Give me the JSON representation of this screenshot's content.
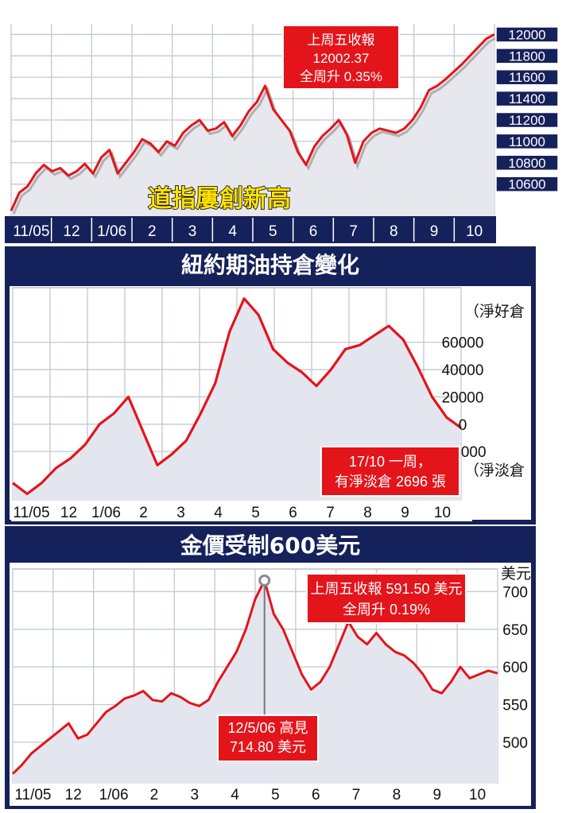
{
  "chart_data": [
    {
      "type": "line",
      "title": "",
      "annotation": "道指屢創新高",
      "callout": [
        "上周五收報",
        "12002.37",
        "全周升 0.35%"
      ],
      "x_labels": [
        "11/05",
        "12",
        "1/06",
        "2",
        "3",
        "4",
        "5",
        "6",
        "7",
        "8",
        "9",
        "10"
      ],
      "y_ticks": [
        12000,
        11800,
        11600,
        11400,
        11200,
        11000,
        10800,
        10600
      ],
      "ylim": [
        10300,
        12100
      ],
      "series": [
        {
          "values": [
            10350,
            10520,
            10580,
            10700,
            10780,
            10720,
            10750,
            10680,
            10720,
            10790,
            10700,
            10850,
            10920,
            10700,
            10800,
            10900,
            11020,
            10980,
            10900,
            11000,
            10960,
            11080,
            11150,
            11200,
            11100,
            11120,
            11180,
            11050,
            11150,
            11280,
            11370,
            11520,
            11300,
            11200,
            11100,
            10900,
            10780,
            10950,
            11050,
            11120,
            11200,
            11060,
            10800,
            11000,
            11080,
            11120,
            11100,
            11080,
            11120,
            11200,
            11320,
            11480,
            11520,
            11580,
            11650,
            11720,
            11800,
            11880,
            11960,
            12002
          ]
        }
      ],
      "grid": true
    },
    {
      "type": "line",
      "title": "紐約期油持倉變化",
      "x_labels": [
        "11/05",
        "12",
        "1/06",
        "2",
        "3",
        "4",
        "5",
        "6",
        "7",
        "8",
        "9",
        "10"
      ],
      "y_ticks": [
        60000,
        40000,
        20000,
        0,
        -20000
      ],
      "y_top_label": "（淨好倉",
      "y_bottom_label": "（淨淡倉",
      "ylim": [
        -56000,
        100000
      ],
      "callout": [
        "17/10 一周，",
        "有淨淡倉 2696 張"
      ],
      "series": [
        {
          "values": [
            -43000,
            -51000,
            -43000,
            -32000,
            -25000,
            -15000,
            0,
            8000,
            20000,
            -5000,
            -30000,
            -22000,
            -12000,
            8000,
            30000,
            68000,
            92000,
            80000,
            55000,
            45000,
            38000,
            28000,
            40000,
            55000,
            58000,
            65000,
            72000,
            62000,
            42000,
            20000,
            5000,
            -2696
          ]
        }
      ],
      "grid": true
    },
    {
      "type": "line",
      "title": "金價受制600美元",
      "unit_label": "美元",
      "x_labels": [
        "11/05",
        "12",
        "1/06",
        "2",
        "3",
        "4",
        "5",
        "6",
        "7",
        "8",
        "9",
        "10"
      ],
      "y_ticks": [
        700,
        650,
        600,
        550,
        500
      ],
      "ylim": [
        445,
        730
      ],
      "callouts": [
        [
          "上周五收報 591.50 美元",
          "全周升 0.19%"
        ],
        [
          "12/5/06 高見",
          "714.80 美元"
        ]
      ],
      "peak": {
        "value": 714.8
      },
      "series": [
        {
          "values": [
            458,
            470,
            485,
            495,
            505,
            515,
            525,
            505,
            510,
            525,
            540,
            548,
            558,
            562,
            568,
            556,
            554,
            565,
            560,
            552,
            548,
            556,
            580,
            600,
            620,
            650,
            690,
            714.8,
            670,
            650,
            620,
            590,
            570,
            580,
            600,
            630,
            660,
            640,
            630,
            645,
            630,
            620,
            615,
            605,
            590,
            570,
            565,
            580,
            600,
            585,
            590,
            595,
            591.5
          ]
        }
      ],
      "grid": true
    }
  ]
}
